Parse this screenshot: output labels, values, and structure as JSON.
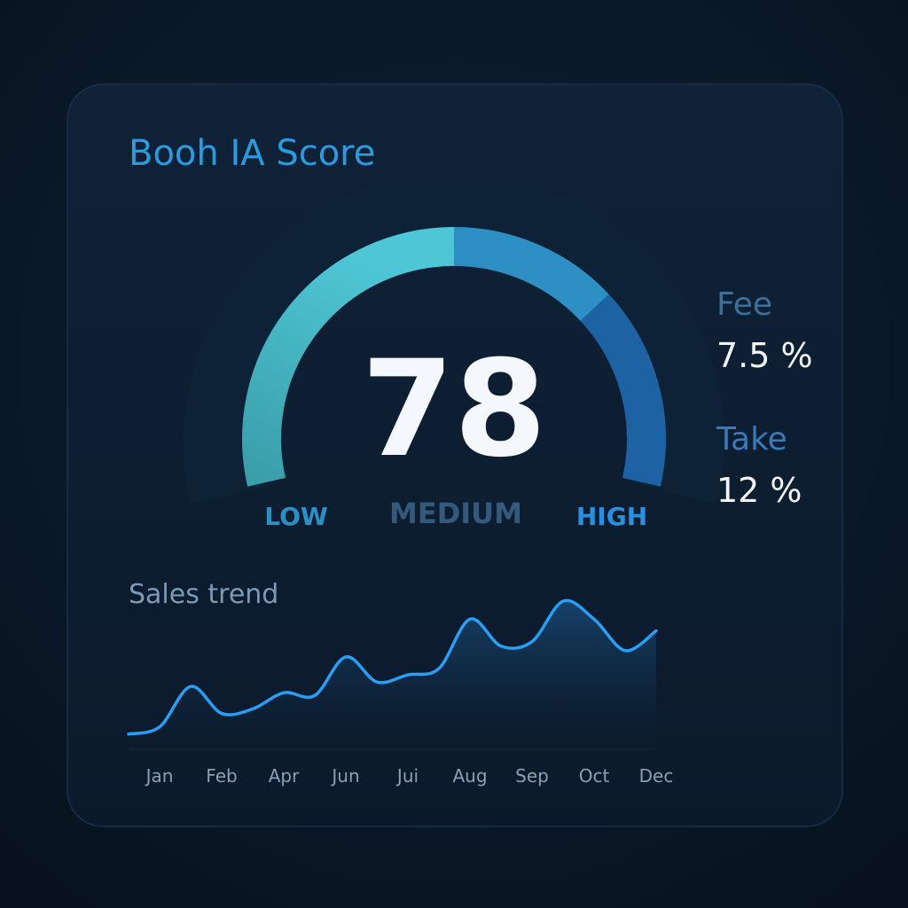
{
  "header": {
    "title": "Booh IA Score"
  },
  "gauge": {
    "value": 78,
    "levels": [
      "LOW",
      "MEDIUM",
      "HIGH"
    ]
  },
  "stats": [
    {
      "label": "Fee",
      "value": "7.5 %"
    },
    {
      "label": "Take",
      "value": "12 %"
    }
  ],
  "chart_data": {
    "type": "line",
    "title": "Sales trend",
    "categories": [
      null,
      "Jan",
      null,
      "Feb",
      null,
      "Apr",
      null,
      "Jun",
      null,
      "Jui",
      null,
      "Aug",
      null,
      "Sep",
      null,
      "Oct",
      null,
      "Dec"
    ],
    "values": [
      12,
      20,
      65,
      35,
      40,
      58,
      55,
      98,
      70,
      78,
      85,
      140,
      110,
      115,
      160,
      140,
      105,
      127
    ],
    "color": "#2a9df4"
  }
}
